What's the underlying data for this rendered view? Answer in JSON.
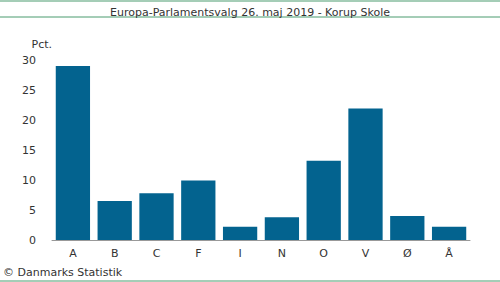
{
  "chart_data": {
    "type": "bar",
    "title": "Europa-Parlamentsvalg 26. maj 2019 - Korup Skole",
    "y_label": "Pct.",
    "annotations": [
      "© Danmarks Statistik"
    ],
    "categories": [
      "A",
      "B",
      "C",
      "F",
      "I",
      "N",
      "O",
      "V",
      "Ø",
      "Å"
    ],
    "values": [
      29.0,
      6.5,
      7.8,
      9.9,
      2.2,
      3.8,
      13.2,
      21.9,
      4.0,
      2.2
    ],
    "color": "#03638f",
    "ylim": [
      0,
      30
    ],
    "yticks": [
      0,
      5,
      10,
      15,
      20,
      25,
      30
    ],
    "grid": false
  }
}
